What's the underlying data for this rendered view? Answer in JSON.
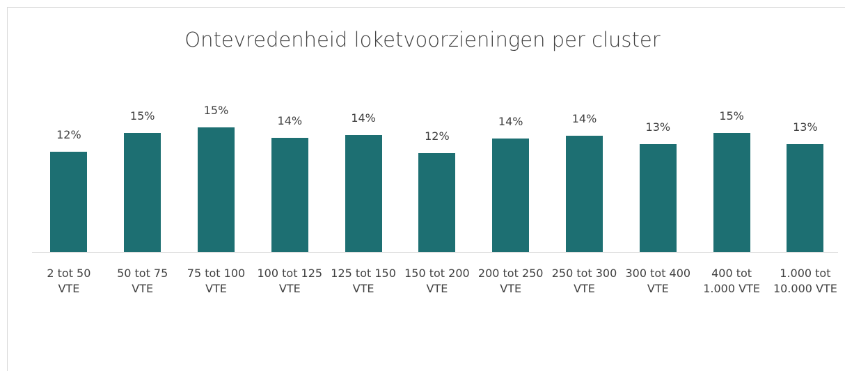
{
  "chart_data": {
    "type": "bar",
    "title": "Ontevredenheid loketvoorzieningen per cluster",
    "categories": [
      "2 tot 50 VTE",
      "50 tot 75 VTE",
      "75 tot 100 VTE",
      "100 tot 125 VTE",
      "125 tot 150 VTE",
      "150 tot 200 VTE",
      "200 tot 250 VTE",
      "250 tot 300 VTE",
      "300 tot 400 VTE",
      "400 tot 1.000 VTE",
      "1.000 tot 10.000 VTE"
    ],
    "values": [
      12.4,
      14.7,
      15.4,
      14.1,
      14.4,
      12.2,
      14.0,
      14.3,
      13.3,
      14.7,
      13.3
    ],
    "value_labels": [
      "12%",
      "15%",
      "15%",
      "14%",
      "14%",
      "12%",
      "14%",
      "14%",
      "13%",
      "15%",
      "13%"
    ],
    "color": "#1d6f72"
  }
}
